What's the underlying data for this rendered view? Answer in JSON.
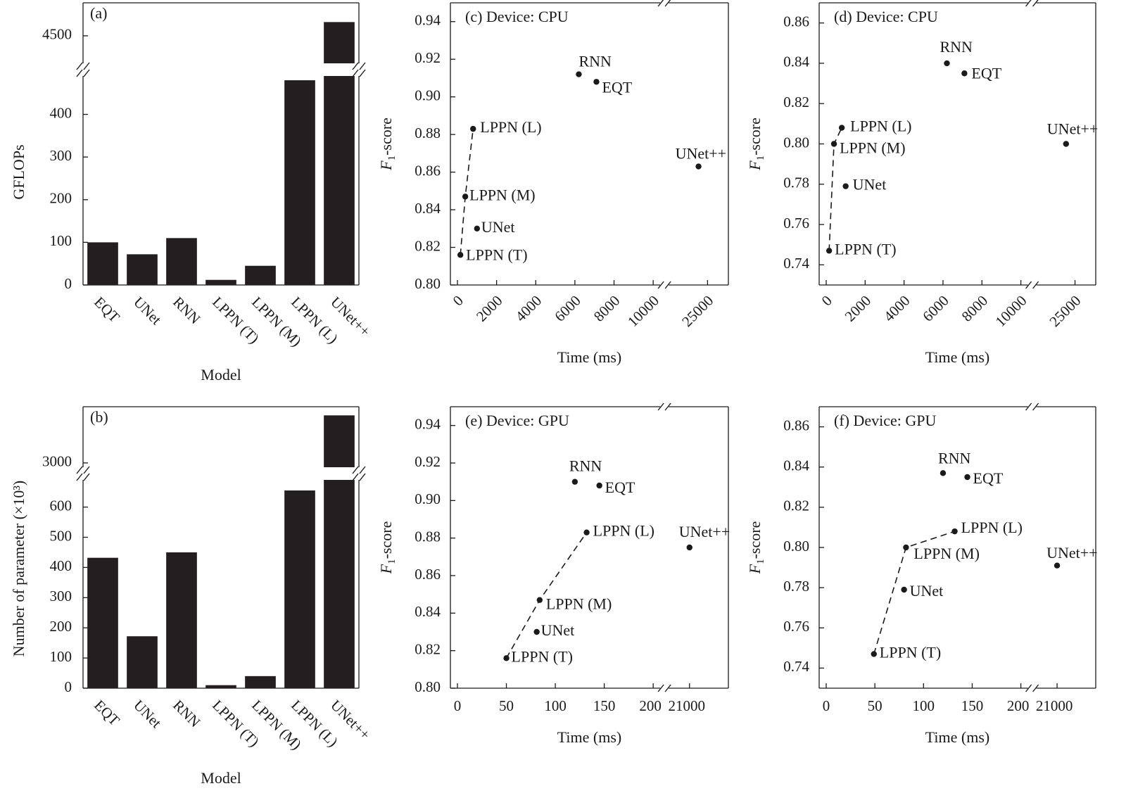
{
  "chart_data": [
    {
      "id": "a",
      "type": "bar",
      "title": "(a)",
      "xlabel": "Model",
      "ylabel": "GFLOPs",
      "categories": [
        "EQT",
        "UNet",
        "RNN",
        "LPPN (T)",
        "LPPN (M)",
        "LPPN (L)",
        "UNet++"
      ],
      "values": [
        100,
        72,
        110,
        12,
        45,
        480,
        4550
      ],
      "ylim_lower": [
        0,
        490
      ],
      "ylim_upper": [
        4400,
        4620
      ],
      "broken_y_axis": true,
      "yticks": [
        "0",
        "100",
        "200",
        "300",
        "400",
        "4500"
      ],
      "grid": false
    },
    {
      "id": "b",
      "type": "bar",
      "title": "(b)",
      "xlabel": "Model",
      "ylabel": "Number of parameter (×10³)",
      "categories": [
        "EQT",
        "UNet",
        "RNN",
        "LPPN (T)",
        "LPPN (M)",
        "LPPN (L)",
        "UNet++"
      ],
      "values": [
        432,
        172,
        450,
        10,
        40,
        655,
        3550
      ],
      "ylim_lower": [
        0,
        690
      ],
      "ylim_upper": [
        2950,
        3650
      ],
      "broken_y_axis": true,
      "yticks": [
        "0",
        "100",
        "200",
        "300",
        "400",
        "500",
        "600",
        "3000"
      ],
      "grid": false
    },
    {
      "id": "c",
      "type": "scatter",
      "title": "(c) Device: CPU",
      "xlabel": "Time (ms)",
      "ylabel": "F1-score",
      "ylabel_main": "F",
      "ylabel_sub": "1",
      "ylabel_rest": "-score",
      "ylim": [
        0.8,
        0.95
      ],
      "yticks": [
        "0.80",
        "0.82",
        "0.84",
        "0.86",
        "0.88",
        "0.90",
        "0.92",
        "0.94"
      ],
      "xticks": [
        "0",
        "2000",
        "4000",
        "6000",
        "8000",
        "10000",
        "25000"
      ],
      "broken_x_axis": true,
      "grid": false,
      "points": [
        {
          "name": "RNN",
          "x": 6200,
          "y": 0.912
        },
        {
          "name": "EQT",
          "x": 7100,
          "y": 0.908
        },
        {
          "name": "LPPN (L)",
          "x": 800,
          "y": 0.883
        },
        {
          "name": "LPPN (M)",
          "x": 400,
          "y": 0.847
        },
        {
          "name": "UNet",
          "x": 1000,
          "y": 0.83
        },
        {
          "name": "LPPN (T)",
          "x": 150,
          "y": 0.816
        },
        {
          "name": "UNet++",
          "x": 24000,
          "y": 0.863
        }
      ],
      "dashed_line": [
        "LPPN (T)",
        "LPPN (M)",
        "LPPN (L)"
      ]
    },
    {
      "id": "d",
      "type": "scatter",
      "title": "(d) Device: CPU",
      "xlabel": "Time (ms)",
      "ylabel": "F1-score",
      "ylabel_main": "F",
      "ylabel_sub": "1",
      "ylabel_rest": "-score",
      "ylim": [
        0.73,
        0.87
      ],
      "yticks": [
        "0.74",
        "0.76",
        "0.78",
        "0.80",
        "0.82",
        "0.84",
        "0.86"
      ],
      "xticks": [
        "0",
        "2000",
        "4000",
        "6000",
        "8000",
        "10000",
        "25000"
      ],
      "broken_x_axis": true,
      "grid": false,
      "points": [
        {
          "name": "RNN",
          "x": 6200,
          "y": 0.84
        },
        {
          "name": "EQT",
          "x": 7100,
          "y": 0.835
        },
        {
          "name": "LPPN (L)",
          "x": 800,
          "y": 0.808
        },
        {
          "name": "LPPN (M)",
          "x": 400,
          "y": 0.8
        },
        {
          "name": "UNet",
          "x": 1000,
          "y": 0.779
        },
        {
          "name": "LPPN (T)",
          "x": 150,
          "y": 0.747
        },
        {
          "name": "UNet++",
          "x": 24000,
          "y": 0.8
        }
      ],
      "dashed_line": [
        "LPPN (T)",
        "LPPN (M)",
        "LPPN (L)"
      ]
    },
    {
      "id": "e",
      "type": "scatter",
      "title": "(e) Device: GPU",
      "xlabel": "Time (ms)",
      "ylabel": "F1-score",
      "ylabel_main": "F",
      "ylabel_sub": "1",
      "ylabel_rest": "-score",
      "ylim": [
        0.8,
        0.95
      ],
      "yticks": [
        "0.80",
        "0.82",
        "0.84",
        "0.86",
        "0.88",
        "0.90",
        "0.92",
        "0.94"
      ],
      "xticks": [
        "0",
        "50",
        "100",
        "150",
        "200",
        "21000"
      ],
      "broken_x_axis": true,
      "grid": false,
      "points": [
        {
          "name": "RNN",
          "x": 120,
          "y": 0.91
        },
        {
          "name": "EQT",
          "x": 145,
          "y": 0.908
        },
        {
          "name": "LPPN (L)",
          "x": 132,
          "y": 0.883
        },
        {
          "name": "LPPN (M)",
          "x": 84,
          "y": 0.847
        },
        {
          "name": "UNet",
          "x": 81,
          "y": 0.83
        },
        {
          "name": "LPPN (T)",
          "x": 50,
          "y": 0.816
        },
        {
          "name": "UNet++",
          "x": 21000,
          "y": 0.875
        }
      ],
      "dashed_line": [
        "LPPN (T)",
        "LPPN (M)",
        "LPPN (L)"
      ]
    },
    {
      "id": "f",
      "type": "scatter",
      "title": "(f) Device: GPU",
      "xlabel": "Time (ms)",
      "ylabel": "F1-score",
      "ylabel_main": "F",
      "ylabel_sub": "1",
      "ylabel_rest": "-score",
      "ylim": [
        0.73,
        0.87
      ],
      "yticks": [
        "0.74",
        "0.76",
        "0.78",
        "0.80",
        "0.82",
        "0.84",
        "0.86"
      ],
      "xticks": [
        "0",
        "50",
        "100",
        "150",
        "200",
        "21000"
      ],
      "broken_x_axis": true,
      "grid": false,
      "points": [
        {
          "name": "RNN",
          "x": 120,
          "y": 0.837
        },
        {
          "name": "EQT",
          "x": 145,
          "y": 0.835
        },
        {
          "name": "LPPN (L)",
          "x": 132,
          "y": 0.808
        },
        {
          "name": "LPPN (M)",
          "x": 82,
          "y": 0.8
        },
        {
          "name": "UNet",
          "x": 80,
          "y": 0.779
        },
        {
          "name": "LPPN (T)",
          "x": 49,
          "y": 0.747
        },
        {
          "name": "UNet++",
          "x": 21000,
          "y": 0.791
        }
      ],
      "dashed_line": [
        "LPPN (T)",
        "LPPN (M)",
        "LPPN (L)"
      ]
    }
  ]
}
